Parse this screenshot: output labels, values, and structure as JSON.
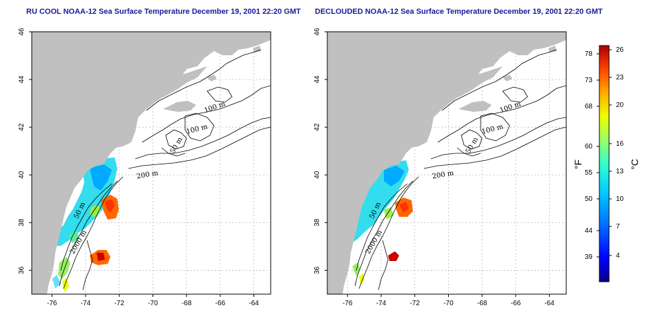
{
  "panels": [
    {
      "id": "left",
      "title": "RU COOL NOAA-12 Sea Surface Temperature December 19, 2001 22:20 GMT",
      "contour_labels": [
        "100 m",
        "100 m",
        "50 m",
        "200 m",
        "50 m",
        "2000 m"
      ]
    },
    {
      "id": "right",
      "title": "DECLOUDED NOAA-12 Sea Surface Temperature December 19, 2001 22:20 GMT",
      "contour_labels": [
        "100 m",
        "100 m",
        "50 m",
        "200 m",
        "50 m",
        "2000 m"
      ]
    }
  ],
  "axes": {
    "lon_ticks": [
      "-76",
      "-74",
      "-72",
      "-70",
      "-68",
      "-66",
      "-64"
    ],
    "lat_ticks": [
      "36",
      "38",
      "40",
      "42",
      "44",
      "46"
    ],
    "lon_range": [
      -77.2,
      -63.0
    ],
    "lat_range": [
      35.0,
      46.0
    ]
  },
  "colorbar": {
    "fahrenheit_ticks": [
      "78",
      "73",
      "68",
      "60",
      "55",
      "50",
      "44",
      "39"
    ],
    "celsius_ticks": [
      "26",
      "23",
      "20",
      "16",
      "13",
      "10",
      "7",
      "4"
    ],
    "unit_f": "°F",
    "unit_c": "°C",
    "colors": [
      "#08008c",
      "#0000ff",
      "#0077ff",
      "#00ccff",
      "#33ffcc",
      "#99ff66",
      "#eeff00",
      "#ffaa00",
      "#ff4400",
      "#aa0000"
    ]
  },
  "colors": {
    "land": "#c0c0c0",
    "sea": "#ffffff",
    "grid": "#b8b8b8",
    "title": "#1a1a99"
  }
}
